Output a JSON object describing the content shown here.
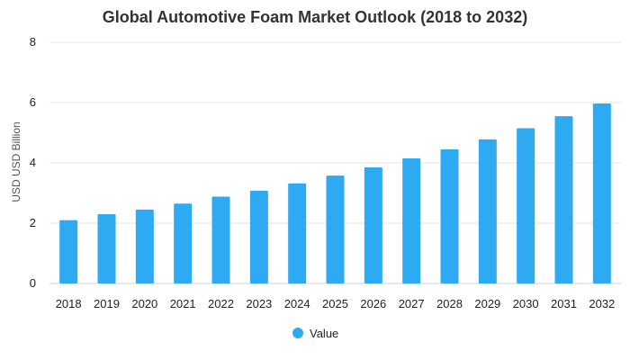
{
  "chart_data": {
    "type": "bar",
    "title": "Global Automotive Foam Market Outlook (2018 to 2032)",
    "xlabel": "",
    "ylabel": "USD USD Billion",
    "ylim": [
      0,
      8
    ],
    "yticks": [
      0,
      2,
      4,
      6,
      8
    ],
    "grid": true,
    "legend_position": "bottom",
    "colors": {
      "bar": "#2eaaf3"
    },
    "categories": [
      "2018",
      "2019",
      "2020",
      "2021",
      "2022",
      "2023",
      "2024",
      "2025",
      "2026",
      "2027",
      "2028",
      "2029",
      "2030",
      "2031",
      "2032"
    ],
    "series": [
      {
        "name": "Value",
        "values": [
          2.1,
          2.3,
          2.45,
          2.65,
          2.88,
          3.08,
          3.32,
          3.58,
          3.85,
          4.15,
          4.45,
          4.78,
          5.15,
          5.55,
          5.97
        ]
      }
    ]
  }
}
